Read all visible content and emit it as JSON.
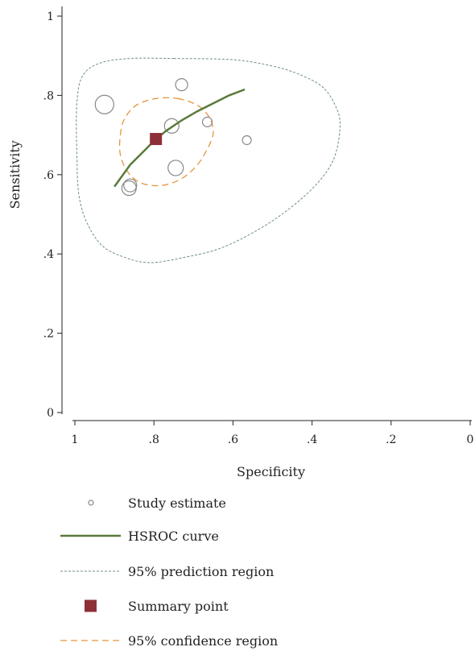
{
  "chart_data": {
    "type": "scatter",
    "xlabel": "Specificity",
    "ylabel": "Sensitivity",
    "xlim": [
      1,
      0
    ],
    "ylim": [
      0,
      1
    ],
    "x_reversed": true,
    "x_ticks": [
      {
        "value": 1,
        "label": "1"
      },
      {
        "value": 0.8,
        "label": ".8"
      },
      {
        "value": 0.6,
        "label": ".6"
      },
      {
        "value": 0.4,
        "label": ".4"
      },
      {
        "value": 0.2,
        "label": ".2"
      },
      {
        "value": 0,
        "label": "0"
      }
    ],
    "y_ticks": [
      {
        "value": 0,
        "label": "0"
      },
      {
        "value": 0.2,
        "label": ".2"
      },
      {
        "value": 0.4,
        "label": ".4"
      },
      {
        "value": 0.6,
        "label": ".6"
      },
      {
        "value": 0.8,
        "label": ".8"
      },
      {
        "value": 1,
        "label": "1"
      }
    ],
    "grid": false,
    "legend_position": "bottom",
    "colors": {
      "study": "#888888",
      "hsroc": "#5a7a3a",
      "prediction": "#6e8f8a",
      "summary": "#8e2f38",
      "confidence": "#e3963e"
    },
    "studies": [
      {
        "specificity": 0.925,
        "sensitivity": 0.777,
        "weight": 0.85
      },
      {
        "specificity": 0.73,
        "sensitivity": 0.827,
        "weight": 0.45
      },
      {
        "specificity": 0.755,
        "sensitivity": 0.723,
        "weight": 0.6
      },
      {
        "specificity": 0.665,
        "sensitivity": 0.733,
        "weight": 0.3
      },
      {
        "specificity": 0.565,
        "sensitivity": 0.687,
        "weight": 0.25
      },
      {
        "specificity": 0.745,
        "sensitivity": 0.617,
        "weight": 0.65
      },
      {
        "specificity": 0.86,
        "sensitivity": 0.573,
        "weight": 0.5
      },
      {
        "specificity": 0.863,
        "sensitivity": 0.566,
        "weight": 0.6
      }
    ],
    "summary_point": {
      "specificity": 0.795,
      "sensitivity": 0.69
    },
    "hsroc_curve": [
      [
        0.9,
        0.57
      ],
      [
        0.86,
        0.625
      ],
      [
        0.83,
        0.655
      ],
      [
        0.8,
        0.685
      ],
      [
        0.77,
        0.71
      ],
      [
        0.73,
        0.737
      ],
      [
        0.69,
        0.76
      ],
      [
        0.65,
        0.78
      ],
      [
        0.61,
        0.8
      ],
      [
        0.57,
        0.815
      ]
    ],
    "confidence_region": [
      [
        0.74,
        0.792
      ],
      [
        0.69,
        0.775
      ],
      [
        0.66,
        0.745
      ],
      [
        0.65,
        0.705
      ],
      [
        0.665,
        0.665
      ],
      [
        0.69,
        0.625
      ],
      [
        0.73,
        0.59
      ],
      [
        0.78,
        0.573
      ],
      [
        0.83,
        0.578
      ],
      [
        0.865,
        0.605
      ],
      [
        0.885,
        0.65
      ],
      [
        0.885,
        0.7
      ],
      [
        0.875,
        0.74
      ],
      [
        0.845,
        0.775
      ],
      [
        0.795,
        0.792
      ]
    ],
    "prediction_region": [
      [
        0.75,
        0.893
      ],
      [
        0.6,
        0.89
      ],
      [
        0.5,
        0.874
      ],
      [
        0.43,
        0.852
      ],
      [
        0.37,
        0.818
      ],
      [
        0.335,
        0.76
      ],
      [
        0.33,
        0.71
      ],
      [
        0.345,
        0.64
      ],
      [
        0.385,
        0.58
      ],
      [
        0.45,
        0.52
      ],
      [
        0.53,
        0.465
      ],
      [
        0.63,
        0.415
      ],
      [
        0.73,
        0.39
      ],
      [
        0.81,
        0.378
      ],
      [
        0.87,
        0.39
      ],
      [
        0.93,
        0.42
      ],
      [
        0.97,
        0.48
      ],
      [
        0.99,
        0.55
      ],
      [
        0.995,
        0.65
      ],
      [
        0.995,
        0.78
      ],
      [
        0.98,
        0.85
      ],
      [
        0.935,
        0.882
      ],
      [
        0.86,
        0.893
      ]
    ],
    "legend": [
      {
        "kind": "study",
        "label": "Study estimate"
      },
      {
        "kind": "hsroc",
        "label": "HSROC curve"
      },
      {
        "kind": "prediction",
        "label": "95% prediction region"
      },
      {
        "kind": "summary",
        "label": "Summary point"
      },
      {
        "kind": "confidence",
        "label": "95% confidence region"
      }
    ]
  }
}
